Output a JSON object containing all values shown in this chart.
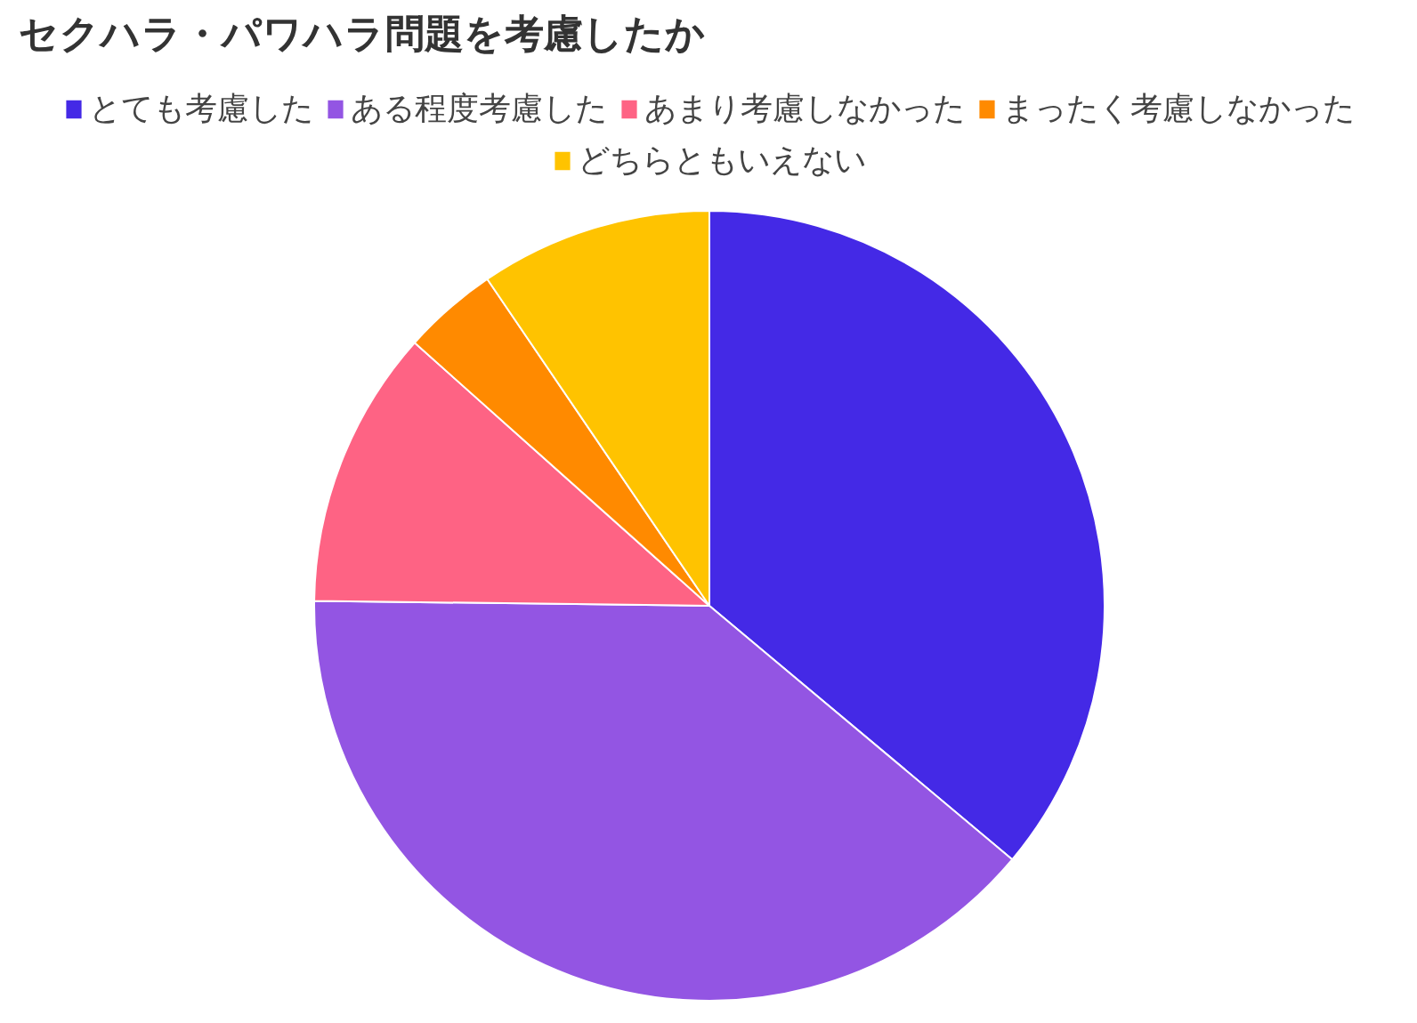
{
  "chart_data": {
    "type": "pie",
    "title": "セクハラ・パワハラ問題を考慮したか",
    "categories": [
      "とても考慮した",
      "ある程度考慮した",
      "あまり考慮しなかった",
      "まったく考慮しなかった",
      "どちらともいえない"
    ],
    "values": [
      36.1,
      39.1,
      11.4,
      3.9,
      9.5
    ],
    "colors": [
      "#4429e6",
      "#9355e3",
      "#fe6384",
      "#ff8a00",
      "#ffc300"
    ],
    "legend": "top"
  }
}
